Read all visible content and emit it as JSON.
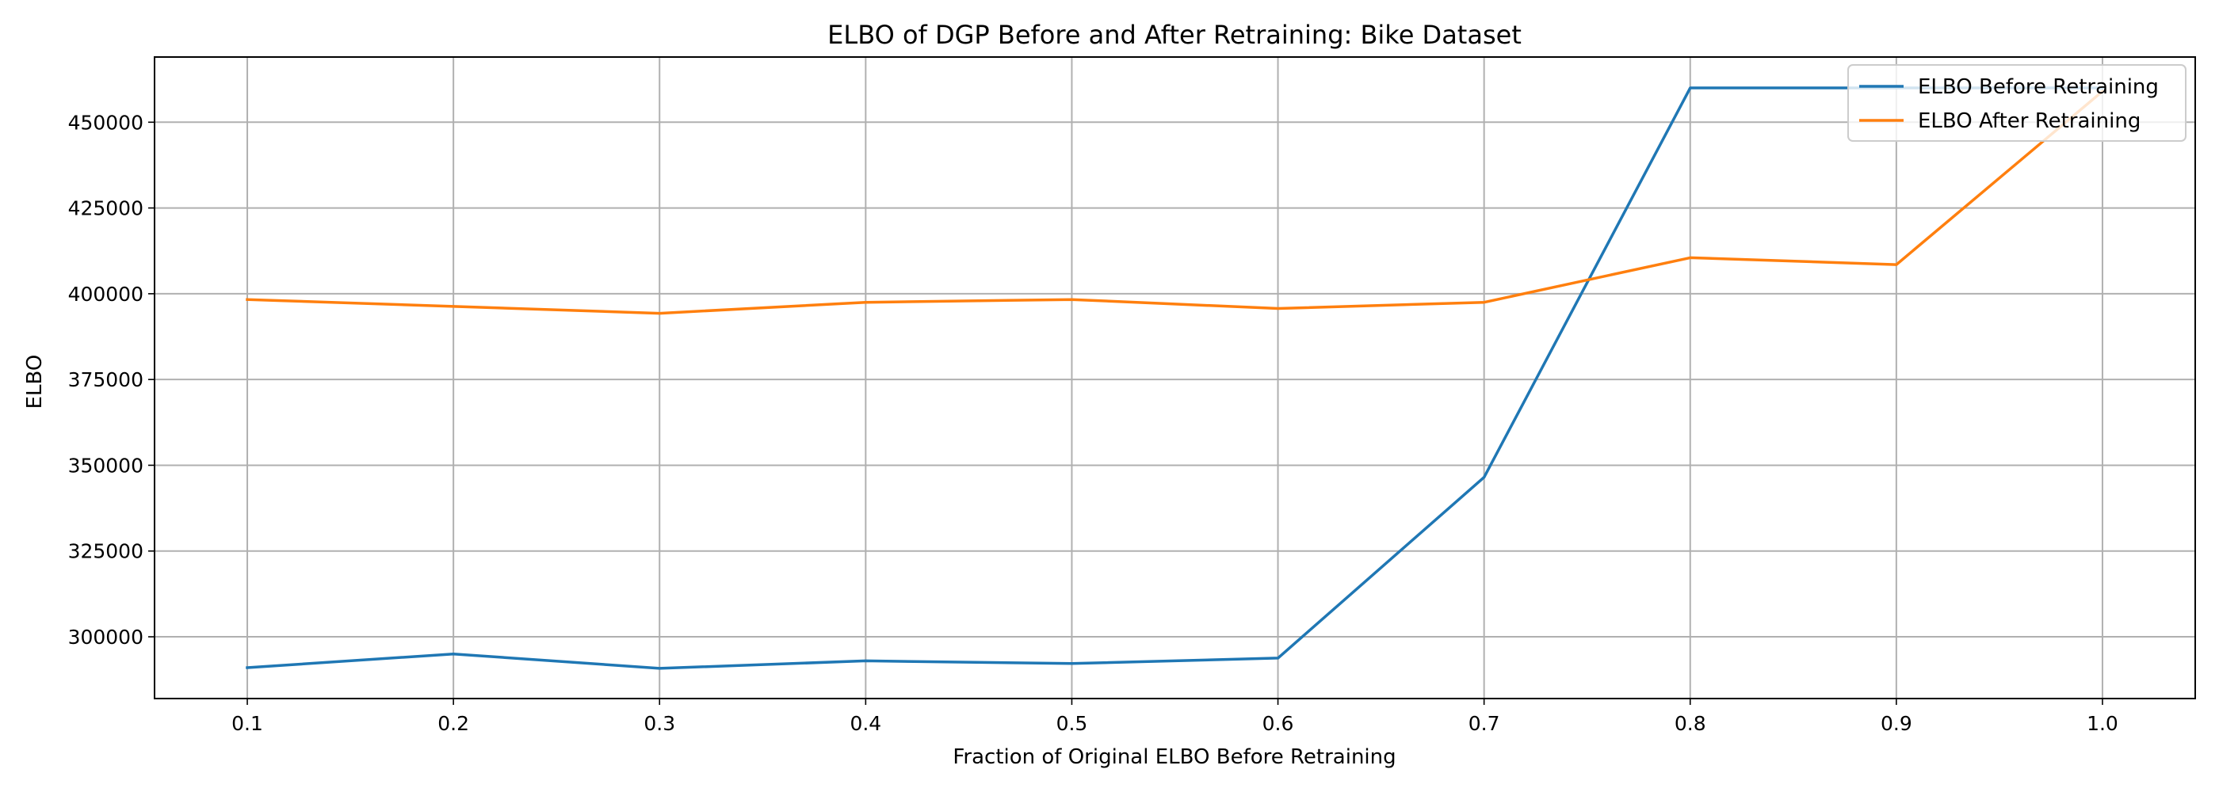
{
  "chart_data": {
    "type": "line",
    "title": "ELBO of DGP Before and After Retraining: Bike Dataset",
    "xlabel": "Fraction of Original ELBO Before Retraining",
    "ylabel": "ELBO",
    "x": [
      0.1,
      0.2,
      0.3,
      0.4,
      0.5,
      0.6,
      0.7,
      0.8,
      0.9,
      1.0
    ],
    "xticks": [
      "0.1",
      "0.2",
      "0.3",
      "0.4",
      "0.5",
      "0.6",
      "0.7",
      "0.8",
      "0.9",
      "1.0"
    ],
    "yticks": [
      "300000",
      "325000",
      "350000",
      "375000",
      "400000",
      "425000",
      "450000"
    ],
    "xlim": [
      0.055,
      1.045
    ],
    "ylim": [
      282000,
      469000
    ],
    "grid": true,
    "legend_position": "top-right",
    "series": [
      {
        "name": "ELBO Before Retraining",
        "color": "#1f77b4",
        "values": [
          291000,
          295000,
          290800,
          293000,
          292200,
          293800,
          346500,
          460000,
          460000,
          460000
        ]
      },
      {
        "name": "ELBO After Retraining",
        "color": "#ff7f0e",
        "values": [
          398300,
          396300,
          394300,
          397500,
          398300,
          395700,
          397500,
          410500,
          408500,
          459000
        ]
      }
    ]
  }
}
